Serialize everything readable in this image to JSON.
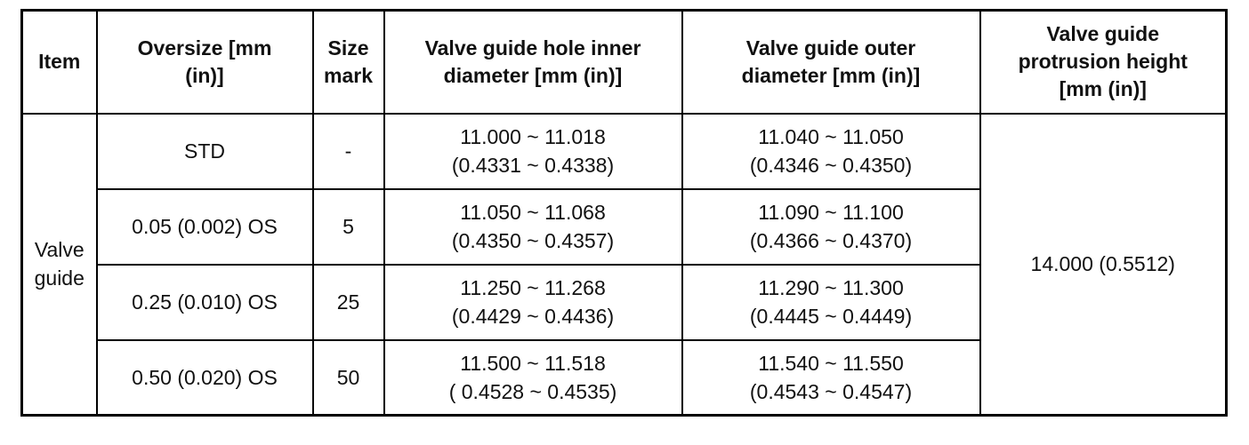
{
  "table": {
    "headers": [
      "Item",
      "Oversize [mm\n(in)]",
      "Size\nmark",
      "Valve guide hole inner\ndiameter [mm (in)]",
      "Valve guide outer\ndiameter [mm (in)]",
      "Valve guide\nprotrusion height\n[mm (in)]"
    ],
    "item_label": "Valve\nguide",
    "protrusion_height": "14.000 (0.5512)",
    "rows": [
      {
        "oversize": "STD",
        "size_mark": "-",
        "inner_diameter": "11.000 ~ 11.018\n(0.4331 ~ 0.4338)",
        "outer_diameter": "11.040 ~ 11.050\n(0.4346 ~ 0.4350)"
      },
      {
        "oversize": "0.05 (0.002) OS",
        "size_mark": "5",
        "inner_diameter": "11.050 ~ 11.068\n(0.4350 ~ 0.4357)",
        "outer_diameter": "11.090 ~ 11.100\n(0.4366 ~ 0.4370)"
      },
      {
        "oversize": "0.25 (0.010) OS",
        "size_mark": "25",
        "inner_diameter": "11.250 ~ 11.268\n(0.4429 ~ 0.4436)",
        "outer_diameter": "11.290 ~ 11.300\n(0.4445 ~ 0.4449)"
      },
      {
        "oversize": "0.50 (0.020) OS",
        "size_mark": "50",
        "inner_diameter": "11.500 ~ 11.518\n( 0.4528 ~ 0.4535)",
        "outer_diameter": "11.540 ~ 11.550\n(0.4543 ~ 0.4547)"
      }
    ],
    "colors": {
      "border": "#000000",
      "background": "#ffffff",
      "text": "#111111"
    }
  }
}
